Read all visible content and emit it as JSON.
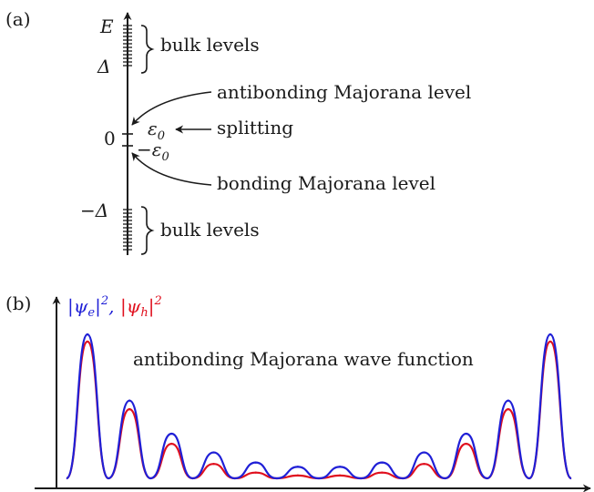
{
  "panel_a": {
    "label": "(a)",
    "axis_label": "E",
    "tick_delta": "Δ",
    "tick_zero": "0",
    "tick_minus_delta": "−Δ",
    "bulk_upper": "bulk levels",
    "bulk_lower": "bulk levels",
    "antibonding": "antibonding Majorana level",
    "splitting": "splitting",
    "bonding": "bonding Majorana level",
    "eps_pos": "ε",
    "eps_pos_sub": "0",
    "eps_neg": "−ε",
    "eps_neg_sub": "0"
  },
  "panel_b": {
    "label": "(b)",
    "legend_e_open": "|ψ",
    "legend_e_sub": "e",
    "legend_e_close": "|",
    "legend_e_exp": "2",
    "legend_sep": ",",
    "legend_h_open": "|ψ",
    "legend_h_sub": "h",
    "legend_h_close": "|",
    "legend_h_exp": "2",
    "annotation": "antibonding Majorana wave function",
    "colors": {
      "electron": "#1f1fd6",
      "hole": "#e0101e"
    }
  },
  "chart_data": {
    "type": "line",
    "x": [
      0.0,
      0.0909,
      0.1818,
      0.2727,
      0.3636,
      0.4545,
      0.5455,
      0.6364,
      0.7273,
      0.8182,
      0.9091,
      1.0
    ],
    "x_meaning": "peak positions along the wire (dimensionless)",
    "series": [
      {
        "name": "|ψe|²",
        "values": [
          1.0,
          0.54,
          0.31,
          0.18,
          0.11,
          0.08,
          0.08,
          0.11,
          0.18,
          0.31,
          0.54,
          1.0
        ]
      },
      {
        "name": "|ψh|²",
        "values": [
          0.95,
          0.48,
          0.24,
          0.1,
          0.04,
          0.02,
          0.02,
          0.04,
          0.1,
          0.24,
          0.48,
          0.95
        ]
      }
    ],
    "grid": false
  }
}
